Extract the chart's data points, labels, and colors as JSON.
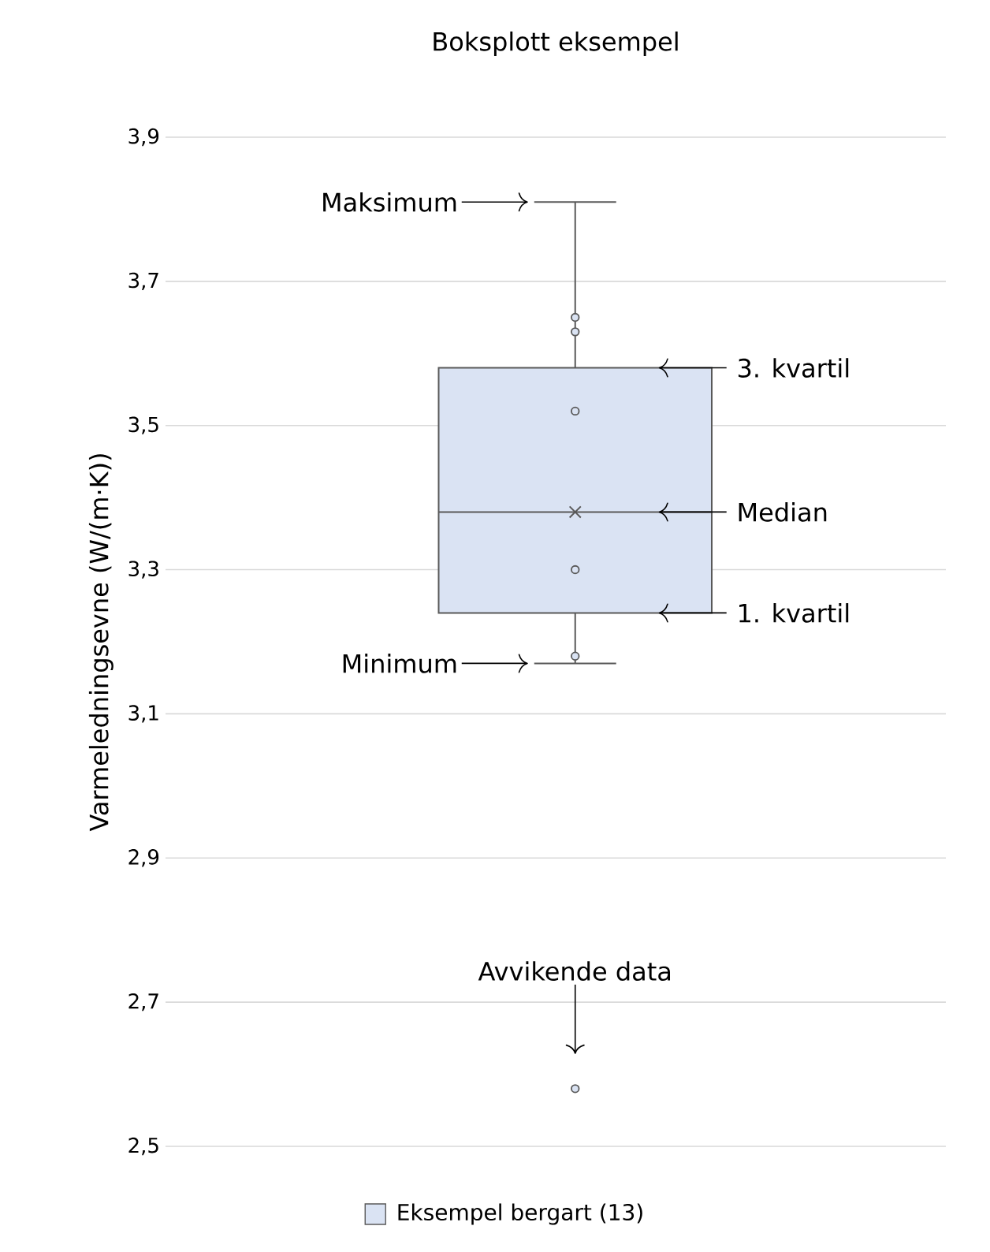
{
  "chart_data": {
    "type": "box",
    "title": "Boksplott eksempel",
    "ylabel": "Varmeledningsevne (W/(m·K))",
    "categories": [
      null
    ],
    "series": [
      {
        "name": "Eksempel bergart (13)",
        "color": "#dae3f3",
        "boxes": [
          {
            "low": 3.17,
            "q1": 3.24,
            "median": 3.38,
            "q3": 3.58,
            "high": 3.81,
            "mean": 3.38,
            "outliers": [
              2.58
            ]
          }
        ]
      },
      {
        "type": "scatter",
        "color": "#dae3f3",
        "marker": "circle",
        "x": [
          null,
          null,
          null,
          null,
          null
        ],
        "values": [
          3.65,
          3.63,
          3.52,
          3.3,
          3.18
        ]
      }
    ],
    "ylim": [
      2.5,
      3.9
    ],
    "yticks": [
      {
        "value": 2.5,
        "label": "2,5"
      },
      {
        "value": 2.7,
        "label": "2,7"
      },
      {
        "value": 2.9,
        "label": "2,9"
      },
      {
        "value": 3.1,
        "label": "3,1"
      },
      {
        "value": 3.3,
        "label": "3,3"
      },
      {
        "value": 3.5,
        "label": "3,5"
      },
      {
        "value": 3.7,
        "label": "3,7"
      },
      {
        "value": 3.9,
        "label": "3,9"
      }
    ],
    "grid": "y",
    "legend": "bottom",
    "tick_labels": "y",
    "annotations": [
      "Maksimum",
      "3. kvartil",
      "Median",
      "1. kvartil",
      "Minimum",
      "Avvikende data"
    ]
  }
}
